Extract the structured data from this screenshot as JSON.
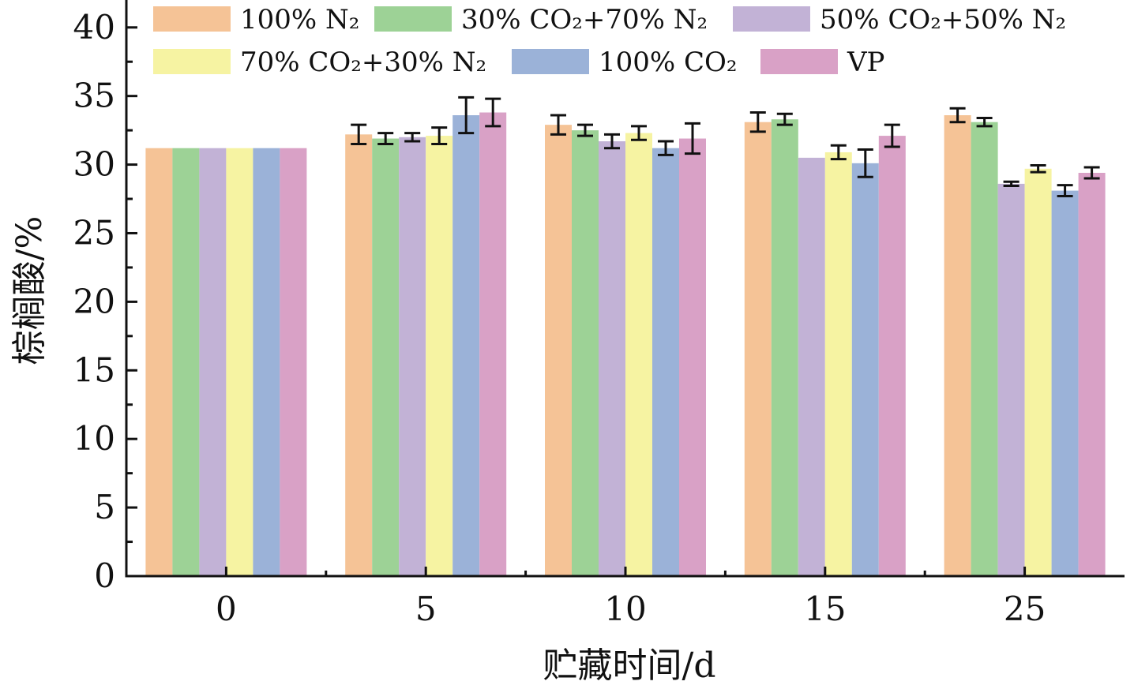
{
  "chart_data": {
    "type": "bar",
    "xlabel": "贮藏时间/d",
    "ylabel": "棕榈酸/%",
    "ylim": [
      0,
      42
    ],
    "yticks": [
      0,
      5,
      10,
      15,
      20,
      25,
      30,
      35,
      40
    ],
    "categories": [
      "0",
      "5",
      "10",
      "15",
      "25"
    ],
    "legend_placement": "top",
    "grid": false,
    "series": [
      {
        "name": "100% N₂",
        "color": "#f5c396",
        "values": [
          31.2,
          32.2,
          32.9,
          33.1,
          33.6
        ],
        "errors": [
          null,
          0.7,
          0.7,
          0.7,
          0.5
        ]
      },
      {
        "name": "30% CO₂+70% N₂",
        "color": "#9dd296",
        "values": [
          31.2,
          31.9,
          32.5,
          33.3,
          33.1
        ],
        "errors": [
          null,
          0.4,
          0.4,
          0.4,
          0.3
        ]
      },
      {
        "name": "50% CO₂+50% N₂",
        "color": "#c2b2d6",
        "values": [
          31.2,
          32.0,
          31.7,
          30.5,
          28.6
        ],
        "errors": [
          null,
          0.3,
          0.5,
          null,
          0.15
        ]
      },
      {
        "name": "70% CO₂+30% N₂",
        "color": "#f6f3a2",
        "values": [
          31.2,
          32.1,
          32.3,
          30.9,
          29.7
        ],
        "errors": [
          null,
          0.6,
          0.5,
          0.5,
          0.25
        ]
      },
      {
        "name": "100% CO₂",
        "color": "#9bb2d8",
        "values": [
          31.2,
          33.6,
          31.2,
          30.1,
          28.1
        ],
        "errors": [
          null,
          1.3,
          0.5,
          1.0,
          0.4
        ]
      },
      {
        "name": "VP",
        "color": "#d9a1c6",
        "values": [
          31.2,
          33.8,
          31.9,
          32.1,
          29.4
        ],
        "errors": [
          null,
          1.0,
          1.1,
          0.8,
          0.4
        ]
      }
    ]
  }
}
